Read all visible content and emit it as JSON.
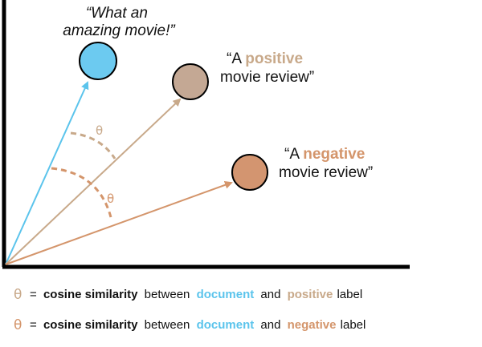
{
  "colors": {
    "document": "#5bc4ec",
    "positive": "#c8a98a",
    "negative": "#d4956b",
    "positive_circle": "#c4a894",
    "negative_circle": "#d39570",
    "document_circle": "#6ccaf0",
    "axis": "#000000",
    "text": "#111111"
  },
  "nodes": {
    "document": {
      "line1": "“What an",
      "line2": "amazing movie!”"
    },
    "positive": {
      "line1_prefix": "“A ",
      "line1_highlight": "positive",
      "line2": "movie review”"
    },
    "negative": {
      "line1_prefix": "“A ",
      "line1_highlight": "negative",
      "line2": "movie review”"
    }
  },
  "angle_symbol": "θ",
  "legend": [
    {
      "symbol": "θ",
      "equals": "=",
      "bold": "cosine similarity",
      "between": "between",
      "doc": "document",
      "and": "and",
      "label_word": "positive",
      "tail": "label",
      "color_key": "positive"
    },
    {
      "symbol": "θ",
      "equals": "=",
      "bold": "cosine similarity",
      "between": "between",
      "doc": "document",
      "and": "and",
      "label_word": "negative",
      "tail": "label",
      "color_key": "negative"
    }
  ]
}
